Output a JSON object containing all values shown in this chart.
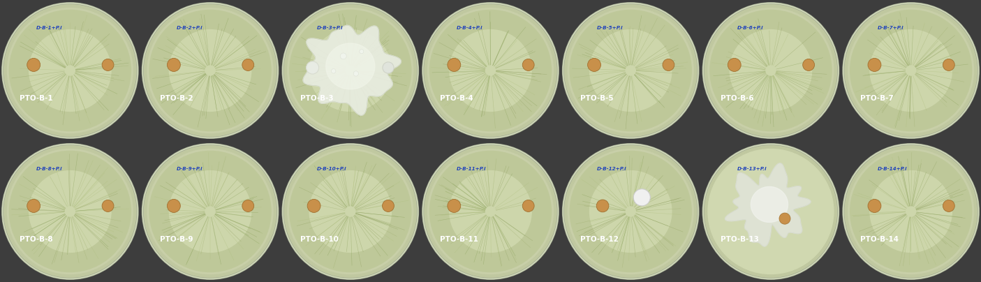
{
  "figsize": [
    14.05,
    4.04
  ],
  "dpi": 100,
  "bg_dark": "#3d3d3d",
  "rows": 2,
  "cols": 7,
  "labels_top_row": [
    "D-B-1+P.i",
    "D-B-2+P.i",
    "D-B-3+P.i",
    "D-B-4+P.i",
    "D-B-5+P.i",
    "D-B-6+P.i",
    "D-B-7+P.i"
  ],
  "labels_bottom_row": [
    "D-B-8+P.i",
    "D-B-9+P.i",
    "D-B-10+P.i",
    "D-B-11+P.i",
    "D-B-12+P.i",
    "D-B-13+P.i",
    "D-B-14+P.i"
  ],
  "names_top_row": [
    "PTO-B-1",
    "PTO-B-2",
    "PTO-B-3",
    "PTO-B-4",
    "PTO-B-5",
    "PTO-B-6",
    "PTO-B-7"
  ],
  "names_bottom_row": [
    "PTO-B-8",
    "PTO-B-9",
    "PTO-B-10",
    "PTO-B-11",
    "PTO-B-12",
    "PTO-B-13",
    "PTO-B-14"
  ],
  "dish_base_color": "#c8cfa8",
  "dish_inner_color": "#d8e0b8",
  "dish_green_color": "#a8b878",
  "dish_outer_green": "#7a8850",
  "dish_rim_color": "#d0d8a8",
  "plate_clear_color": "#c8cfc0",
  "plate_border_color": "#b8c090",
  "bg_show_color": "#404040",
  "plug_color": "#c8904a",
  "plug_edge_color": "#a07030",
  "text_color_label": "#2244bb",
  "text_color_name": "#ffffff",
  "b3_colony_color": "#e8ece0",
  "b3_colony_color2": "#f0f4e8",
  "b13_colony_color": "#d8dcd0",
  "b13_colony_color2": "#e0e4d8",
  "b12_plug_color": "#e8ece0"
}
